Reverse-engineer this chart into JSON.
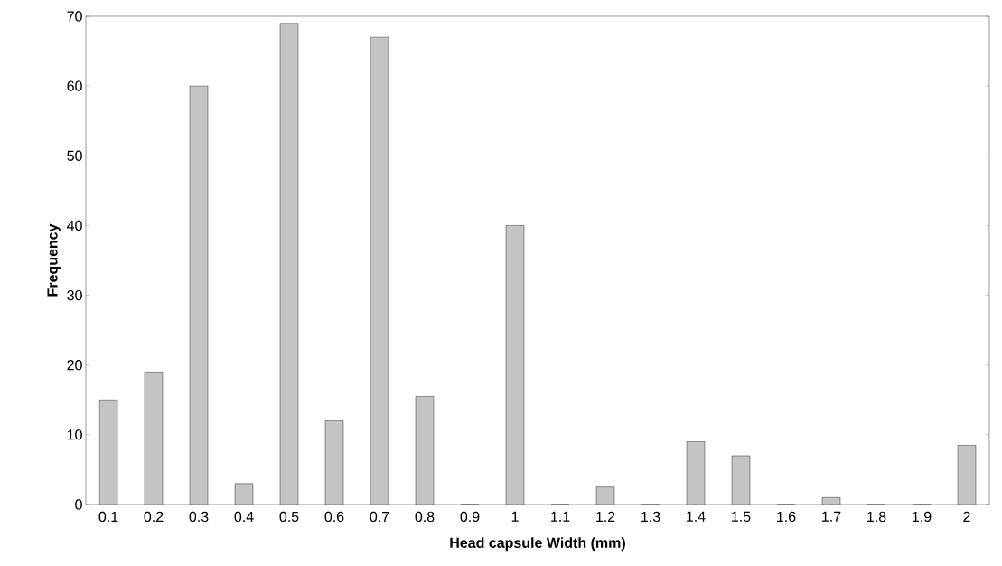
{
  "chart_data": {
    "type": "bar",
    "xlabel": "Head capsule Width (mm)",
    "ylabel": "Frequency",
    "categories": [
      "0.1",
      "0.2",
      "0.3",
      "0.4",
      "0.5",
      "0.6",
      "0.7",
      "0.8",
      "0.9",
      "1",
      "1.1",
      "1.2",
      "1.3",
      "1.4",
      "1.5",
      "1.6",
      "1.7",
      "1.8",
      "1.9",
      "2"
    ],
    "values": [
      15,
      19,
      60,
      3,
      69,
      12,
      67,
      15.5,
      0,
      40,
      0,
      2.5,
      0,
      9,
      7,
      0,
      1,
      0,
      0,
      8.5
    ],
    "color": "#c4c4c4",
    "ylim": [
      0,
      70
    ],
    "yticks": [
      0,
      10,
      20,
      30,
      40,
      50,
      60,
      70
    ],
    "grid": false
  }
}
